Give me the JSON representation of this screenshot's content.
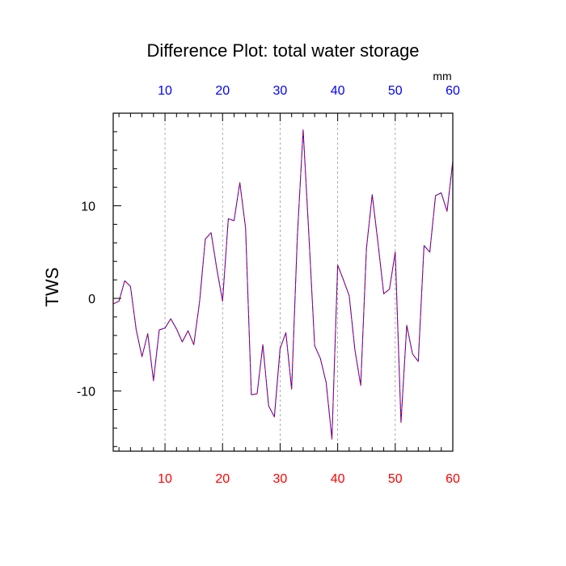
{
  "chart_data": {
    "type": "line",
    "title": "Difference Plot: total water storage",
    "ylabel": "TWS",
    "top_axis_units": "mm",
    "xlim": [
      1,
      60
    ],
    "ylim": [
      -16.5,
      20
    ],
    "bottom_ticks": [
      10,
      20,
      30,
      40,
      50,
      60
    ],
    "top_ticks": [
      10,
      20,
      30,
      40,
      50,
      60
    ],
    "y_ticks": [
      -10,
      0,
      10
    ],
    "bottom_tick_color": "#ff0000",
    "top_tick_color": "#0000ff",
    "vertical_grid": true,
    "grid_style": "dashed",
    "series": [
      {
        "color_solid": "#0000ff",
        "color_dash": "#ff0000",
        "x": [
          1,
          2,
          3,
          4,
          5,
          6,
          7,
          8,
          9,
          10,
          11,
          12,
          13,
          14,
          15,
          16,
          17,
          18,
          19,
          20,
          21,
          22,
          23,
          24,
          25,
          26,
          27,
          28,
          29,
          30,
          31,
          32,
          33,
          34,
          35,
          36,
          37,
          38,
          39,
          40,
          41,
          42,
          43,
          44,
          45,
          46,
          47,
          48,
          49,
          50,
          51,
          52,
          53,
          54,
          55,
          56,
          57,
          58,
          59,
          60
        ],
        "values": [
          -0.6,
          -0.3,
          1.9,
          1.3,
          -3.4,
          -6.3,
          -3.8,
          -8.9,
          -3.4,
          -3.2,
          -2.2,
          -3.3,
          -4.7,
          -3.5,
          -5.0,
          -0.4,
          6.4,
          7.1,
          3.2,
          -0.3,
          8.6,
          8.4,
          12.5,
          7.6,
          -10.4,
          -10.3,
          -5.0,
          -11.6,
          -12.8,
          -5.4,
          -3.7,
          -9.8,
          6.8,
          18.2,
          6.8,
          -5.1,
          -6.5,
          -9.1,
          -15.2,
          3.6,
          2.0,
          0.3,
          -5.6,
          -9.4,
          5.4,
          11.2,
          6.0,
          0.5,
          1.0,
          5.0,
          -13.4,
          -2.9,
          -6.0,
          -6.8,
          5.7,
          5.0,
          11.1,
          11.4,
          9.4,
          14.8
        ]
      }
    ]
  }
}
